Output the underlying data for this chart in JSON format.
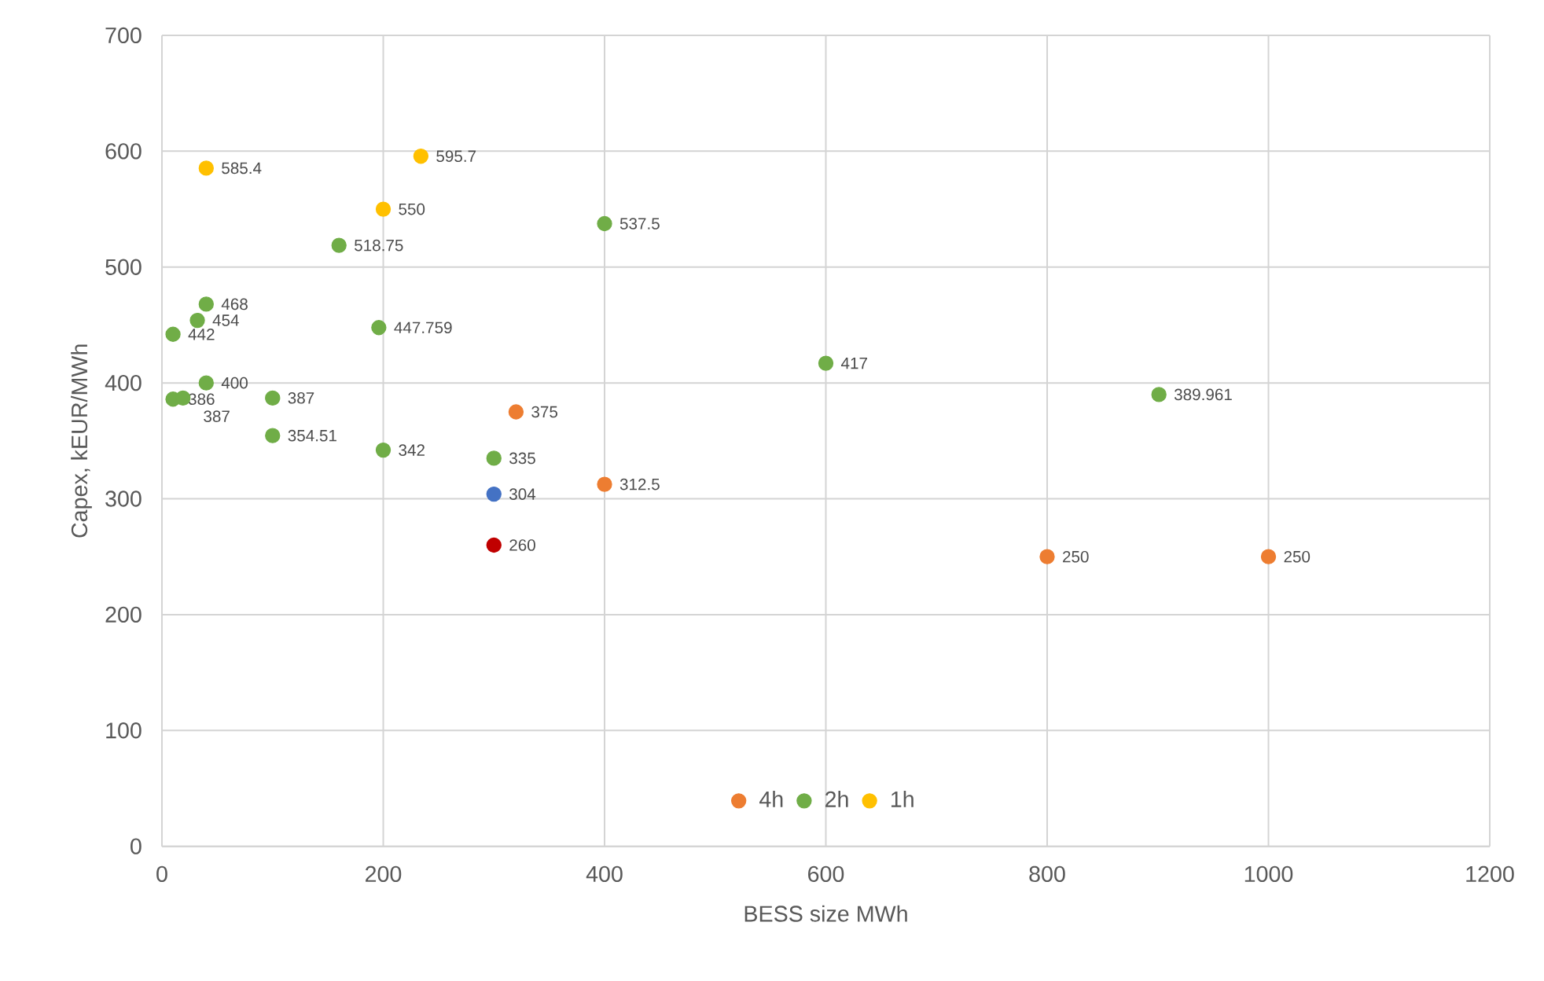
{
  "chart_data": {
    "type": "scatter",
    "xlabel": "BESS size MWh",
    "ylabel": "Capex, kEUR/MWh",
    "xlim": [
      0,
      1200
    ],
    "xticks": [
      0,
      200,
      400,
      600,
      800,
      1000,
      1200
    ],
    "ylim": [
      0,
      700
    ],
    "yticks": [
      0,
      100,
      200,
      300,
      400,
      500,
      600,
      700
    ],
    "grid": true,
    "legend": "bottom",
    "marker": "circle",
    "series": [
      {
        "name": "4h",
        "color": "#ed7d31",
        "x": [
          320,
          400,
          800,
          1000
        ],
        "values": [
          375,
          312.5,
          250,
          250
        ],
        "value_labels": [
          "375",
          "312.5",
          "250",
          "250"
        ]
      },
      {
        "name": "2h",
        "color": "#70ad47",
        "x": [
          160,
          400,
          40,
          32,
          10,
          196,
          600,
          901,
          40,
          10,
          19,
          100,
          100,
          200,
          300
        ],
        "values": [
          518.75,
          537.5,
          468,
          454,
          442,
          447.759,
          417,
          389.961,
          400,
          386,
          387,
          387,
          354.51,
          342,
          335
        ],
        "value_labels": [
          "518.75",
          "537.5",
          "468",
          "454",
          "442",
          "447.759",
          "417",
          "389.961",
          "400",
          "386",
          "387",
          "387",
          "354.51",
          "342",
          "335"
        ]
      },
      {
        "name": "1h",
        "color": "#ffc000",
        "x": [
          40,
          234,
          200
        ],
        "values": [
          585.4,
          595.7,
          550
        ],
        "value_labels": [
          "585.4",
          "595.7",
          "550"
        ]
      },
      {
        "color": "#4472c4",
        "x": [
          300
        ],
        "values": [
          304
        ],
        "value_labels": [
          "304"
        ]
      },
      {
        "color": "#c00000",
        "x": [
          300
        ],
        "values": [
          260
        ],
        "value_labels": [
          "260"
        ]
      }
    ]
  }
}
